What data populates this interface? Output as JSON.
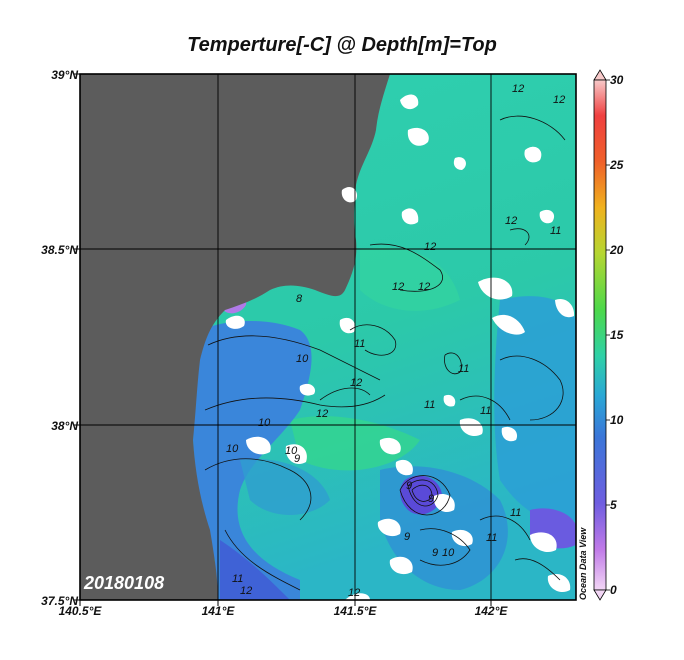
{
  "title": "Temperture[-C] @ Depth[m]=Top",
  "date_stamp": "20180108",
  "watermark": "Ocean Data View",
  "axes": {
    "lat_ticks": [
      "39°N",
      "38.5°N",
      "38°N",
      "37.5°N"
    ],
    "lon_ticks": [
      "140.5°E",
      "141°E",
      "141.5°E",
      "142°E"
    ]
  },
  "colorbar": {
    "ticks": [
      "30",
      "25",
      "20",
      "15",
      "10",
      "5",
      "0"
    ],
    "range": [
      0,
      30
    ]
  },
  "contour_labels": [
    "12",
    "12",
    "11",
    "12",
    "12",
    "12",
    "12",
    "8",
    "10",
    "11",
    "12",
    "10",
    "12",
    "11",
    "11",
    "11",
    "10",
    "10",
    "9",
    "9",
    "9",
    "10",
    "11",
    "11",
    "9",
    "9",
    "11",
    "12",
    "12"
  ],
  "colors": {
    "land": "#5c5c5c",
    "ocean_warm": "#2fd1a6",
    "ocean_mid": "#2aa7d6",
    "ocean_cold": "#3f6ad8",
    "grid": "#000000"
  }
}
